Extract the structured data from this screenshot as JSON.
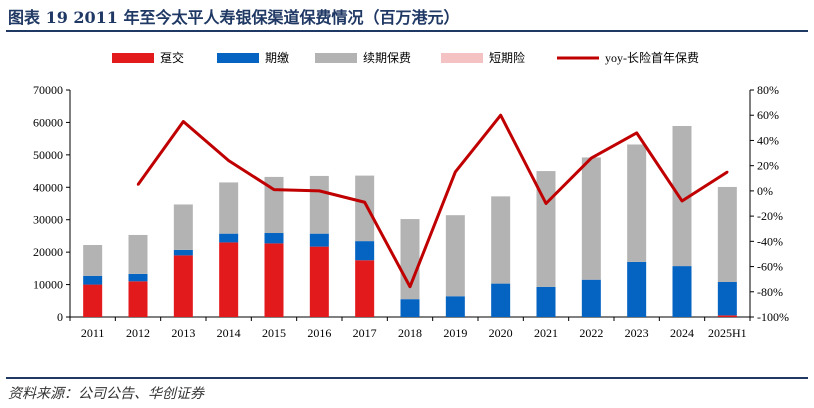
{
  "header": {
    "title": "图表 19   2011 年至今太平人寿银保渠道保费情况（百万港元）"
  },
  "footer": {
    "source": "资料来源：公司公告、华创证券"
  },
  "colors": {
    "yejiao": "#e31a1c",
    "qijiao": "#0563c1",
    "xuqi": "#b3b3b3",
    "duanqi": "#f4c2c2",
    "line": "#c00000",
    "rule": "#1f3864"
  },
  "chart_data": {
    "type": "bar",
    "stacked": true,
    "categories": [
      "2011",
      "2012",
      "2013",
      "2014",
      "2015",
      "2016",
      "2017",
      "2018",
      "2019",
      "2020",
      "2021",
      "2022",
      "2023",
      "2024",
      "2025H1"
    ],
    "series": [
      {
        "name": "趸交",
        "values": [
          10000,
          11000,
          19000,
          23000,
          22700,
          21700,
          17500,
          0,
          0,
          0,
          0,
          0,
          0,
          0,
          500
        ]
      },
      {
        "name": "期缴",
        "values": [
          2700,
          2300,
          1700,
          2700,
          3200,
          4000,
          5900,
          5500,
          6400,
          10300,
          9300,
          11500,
          17000,
          15700,
          10300
        ]
      },
      {
        "name": "续期保费",
        "values": [
          9500,
          12000,
          14000,
          15800,
          17300,
          17800,
          20200,
          24700,
          25000,
          26900,
          35700,
          37700,
          36200,
          43200,
          29300
        ]
      },
      {
        "name": "短期险",
        "values": [
          0,
          0,
          0,
          0,
          0,
          0,
          0,
          0,
          0,
          0,
          0,
          0,
          0,
          0,
          0
        ]
      }
    ],
    "line_series": {
      "name": "yoy-长险首年保费",
      "axis": "right",
      "values": [
        null,
        5,
        55,
        24,
        1,
        0,
        -9,
        -76,
        15,
        60,
        -10,
        26,
        46,
        -8,
        15
      ]
    },
    "ylim": [
      0,
      70000
    ],
    "yticks": [
      0,
      10000,
      20000,
      30000,
      40000,
      50000,
      60000,
      70000
    ],
    "ytick_labels": [
      "0",
      "10000",
      "20000",
      "30000",
      "40000",
      "50000",
      "60000",
      "70000"
    ],
    "y2lim": [
      -100,
      80
    ],
    "y2ticks": [
      -100,
      -80,
      -60,
      -40,
      -20,
      0,
      20,
      40,
      60,
      80
    ],
    "y2tick_labels": [
      "-100%",
      "-80%",
      "-60%",
      "-40%",
      "-20%",
      "0%",
      "20%",
      "40%",
      "60%",
      "80%"
    ],
    "legend": {
      "position": "top",
      "entries": [
        "趸交",
        "期缴",
        "续期保费",
        "短期险",
        "yoy-长险首年保费"
      ]
    },
    "grid": false
  }
}
